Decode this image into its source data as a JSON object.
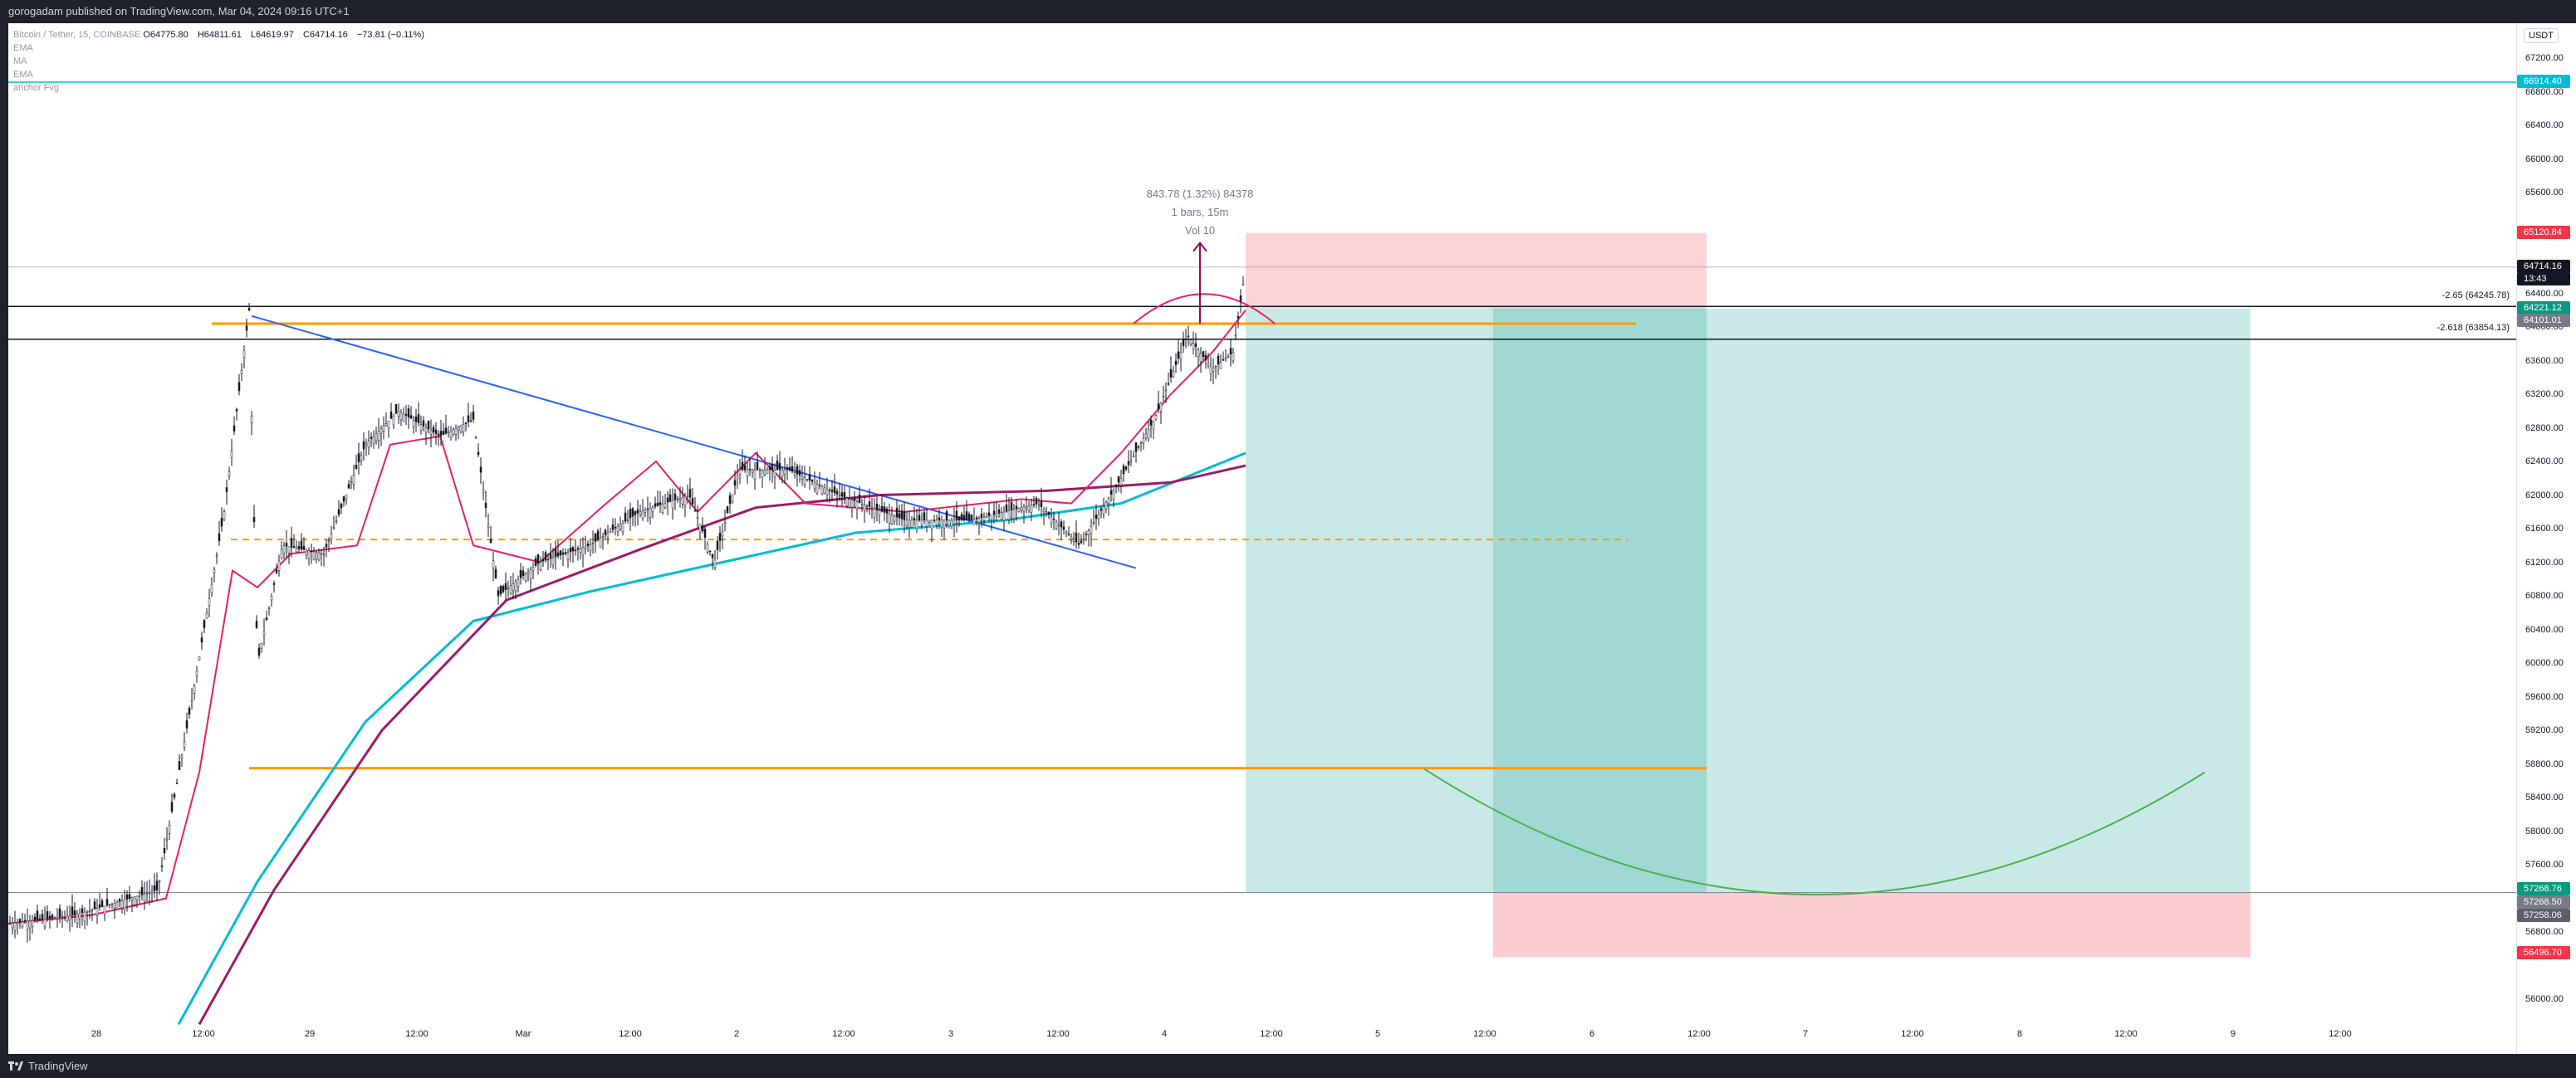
{
  "header": {
    "published": "gorogadam published on TradingView.com, Mar 04, 2024 09:16 UTC+1"
  },
  "legend": {
    "symbol": "Bitcoin / Tether, 15, COINBASE",
    "open": "O64775.80",
    "high": "H64811.61",
    "low": "L64619.97",
    "close": "C64714.16",
    "change": "−73.81 (−0.11%)",
    "indicators": [
      "EMA",
      "MA",
      "EMA",
      "anchor Fvg"
    ]
  },
  "price_axis": {
    "currency": "USDT",
    "ticks": [
      "67200.00",
      "66800.00",
      "66400.00",
      "66000.00",
      "65600.00",
      "64400.00",
      "64000.00",
      "63600.00",
      "63200.00",
      "62800.00",
      "62400.00",
      "62000.00",
      "61600.00",
      "61200.00",
      "60800.00",
      "60400.00",
      "60000.00",
      "59600.00",
      "59200.00",
      "58800.00",
      "58400.00",
      "58000.00",
      "57600.00",
      "56800.00",
      "56000.00"
    ],
    "tags": [
      {
        "label": "66914.40",
        "color": "#00bcd4"
      },
      {
        "label": "65120.84",
        "color": "#f23645"
      },
      {
        "label": "64714.16",
        "color": "#131722"
      },
      {
        "label": "13:43",
        "color": "#131722"
      },
      {
        "label": "64221.12",
        "color": "#089981"
      },
      {
        "label": "64101.01",
        "color": "#787b86"
      },
      {
        "label": "57268.76",
        "color": "#089981"
      },
      {
        "label": "57268.50",
        "color": "#787b86"
      },
      {
        "label": "57258.06",
        "color": "#5d606b"
      },
      {
        "label": "56496.70",
        "color": "#f23645"
      }
    ]
  },
  "time_axis": {
    "labels": [
      "28",
      "12:00",
      "29",
      "12:00",
      "Mar",
      "12:00",
      "2",
      "12:00",
      "3",
      "12:00",
      "4",
      "12:00",
      "5",
      "12:00",
      "6",
      "12:00",
      "7",
      "12:00",
      "8",
      "12:00",
      "9",
      "12:00"
    ]
  },
  "measure": {
    "line1": "843.78 (1.32%) 84378",
    "line2": "1 bars, 15m",
    "line3": "Vol 10"
  },
  "fib_levels": [
    {
      "label": "-2.65 (64245.78)"
    },
    {
      "label": "-2.618 (63854.13)"
    }
  ],
  "colors": {
    "ema_fast": "#e91e63",
    "ma": "#9c1a6b",
    "ema_slow": "#00bcd4",
    "trendline": "#2962ff",
    "horizontal": "#ff9800",
    "arc": "#4caf50",
    "profit_zone": "#26a69a",
    "loss_zone": "#f23645"
  },
  "bottom": {
    "brand": "TradingView"
  }
}
